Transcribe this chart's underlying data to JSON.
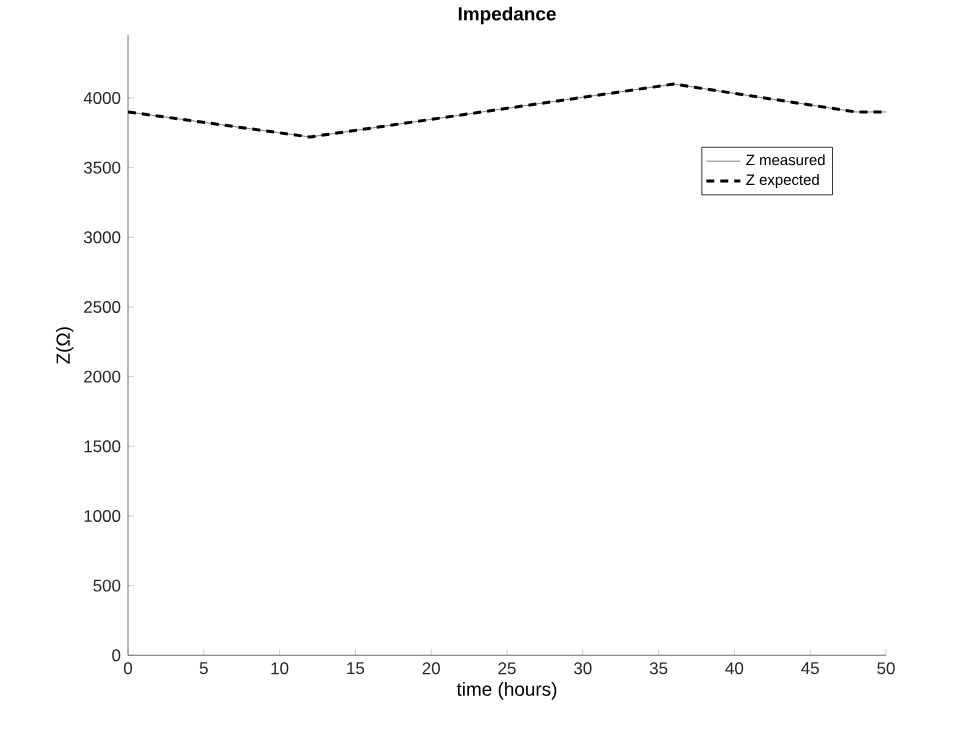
{
  "chart_data": {
    "type": "line",
    "title": "Impedance",
    "xlabel": "time (hours)",
    "ylabel": "Z(Ω)",
    "x": [
      0,
      12,
      36,
      48,
      50
    ],
    "series": [
      {
        "name": "Z measured",
        "color": "#808080",
        "line_style": "solid",
        "values": [
          3900,
          3720,
          4100,
          3900,
          3900
        ]
      },
      {
        "name": "Z expected",
        "color": "#000000",
        "line_style": "dashed",
        "values": [
          3900,
          3720,
          4100,
          3900,
          3900
        ]
      }
    ],
    "xlim": [
      0,
      50
    ],
    "xticks": [
      0,
      5,
      10,
      15,
      20,
      25,
      30,
      35,
      40,
      45,
      50
    ],
    "ylim": [
      0,
      4450
    ],
    "yticks": [
      0,
      500,
      1000,
      1500,
      2000,
      2500,
      3000,
      3500,
      4000
    ],
    "grid": false,
    "legend": "top right",
    "marker": "none"
  }
}
